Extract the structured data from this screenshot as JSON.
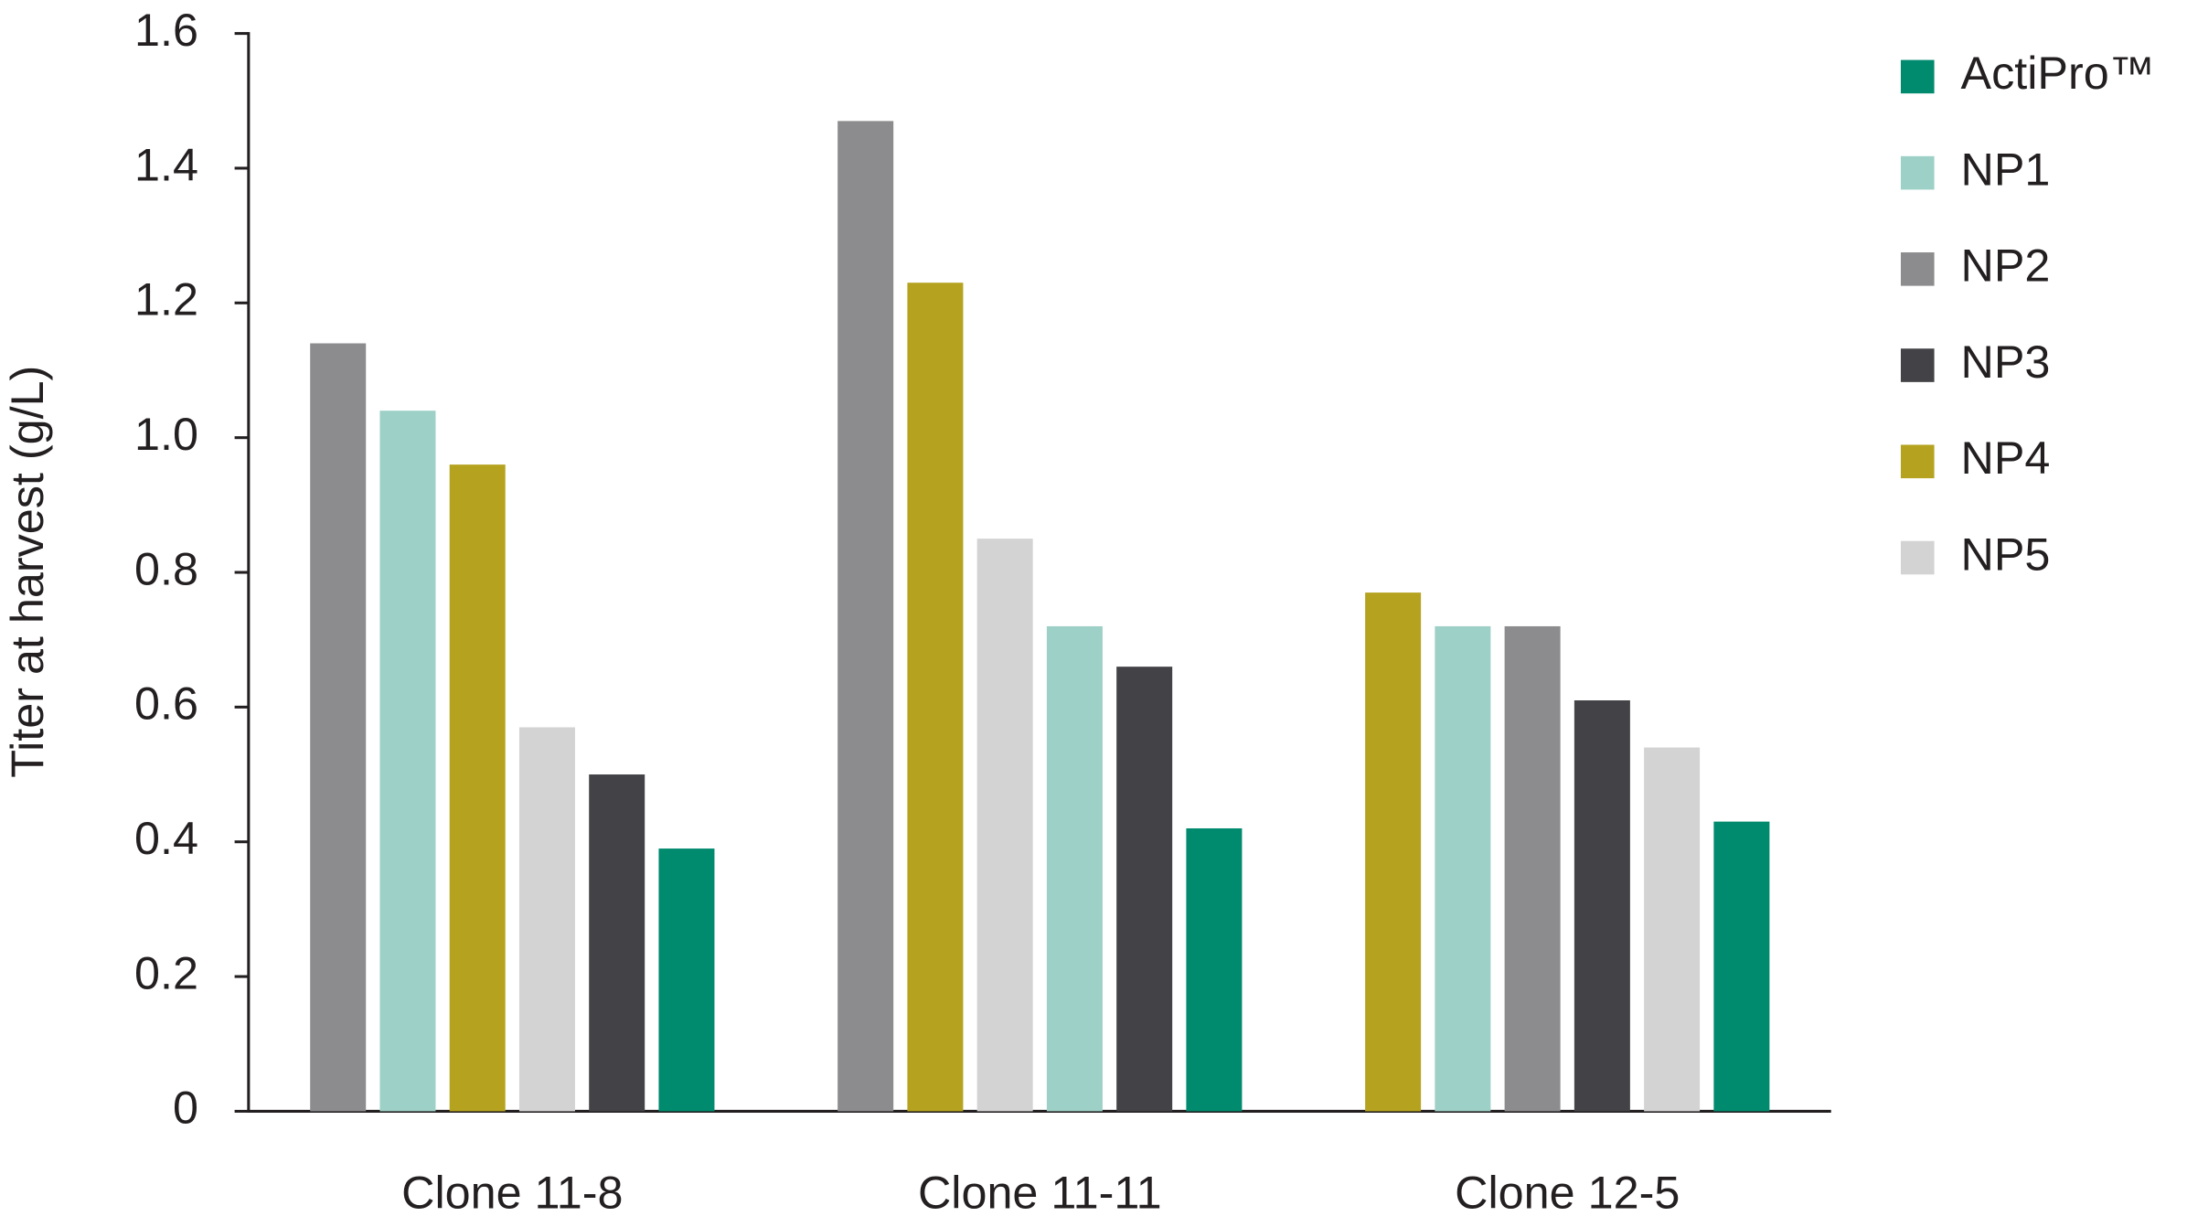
{
  "chart_data": {
    "type": "bar",
    "y_label": "Titer at harvest (g/L)",
    "categories": [
      "Clone 11-8",
      "Clone 11-11",
      "Clone 12-5"
    ],
    "series": [
      {
        "name": "ActiPro™",
        "color": "#008a6e",
        "values": [
          0.39,
          0.42,
          0.43
        ]
      },
      {
        "name": "NP1",
        "color": "#9dd0c6",
        "values": [
          1.04,
          0.72,
          0.72
        ]
      },
      {
        "name": "NP2",
        "color": "#8c8c8e",
        "values": [
          1.14,
          1.47,
          0.72
        ]
      },
      {
        "name": "NP3",
        "color": "#434347",
        "values": [
          0.5,
          0.66,
          0.61
        ]
      },
      {
        "name": "NP4",
        "color": "#b5a31f",
        "values": [
          0.96,
          1.23,
          0.77
        ]
      },
      {
        "name": "NP5",
        "color": "#d3d3d3",
        "values": [
          0.57,
          0.85,
          0.54
        ]
      }
    ],
    "ylim": [
      0,
      1.6
    ],
    "yticks": [
      0,
      0.2,
      0.4,
      0.6,
      0.8,
      {
        "value": 1,
        "label": "1.0"
      },
      1.2,
      1.4,
      1.6
    ],
    "legend": "right"
  }
}
